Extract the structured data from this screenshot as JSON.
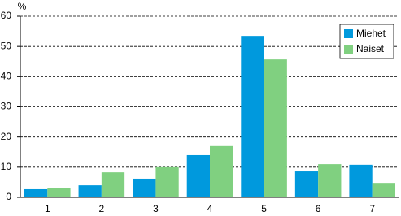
{
  "chart_data": {
    "type": "bar",
    "y_label": "%",
    "categories": [
      "1",
      "2",
      "3",
      "4",
      "5",
      "6",
      "7"
    ],
    "series": [
      {
        "name": "Miehet",
        "color": "#0099dd",
        "values": [
          2.7,
          4.0,
          6.2,
          14,
          53.5,
          8.6,
          10.8
        ]
      },
      {
        "name": "Naiset",
        "color": "#80d080",
        "values": [
          3.2,
          8.3,
          10,
          17,
          45.7,
          11,
          4.8
        ]
      }
    ],
    "ylim": [
      0,
      60
    ],
    "yticks": [
      0,
      10,
      20,
      30,
      40,
      50,
      60
    ],
    "grid": true,
    "legend": "top-right"
  }
}
